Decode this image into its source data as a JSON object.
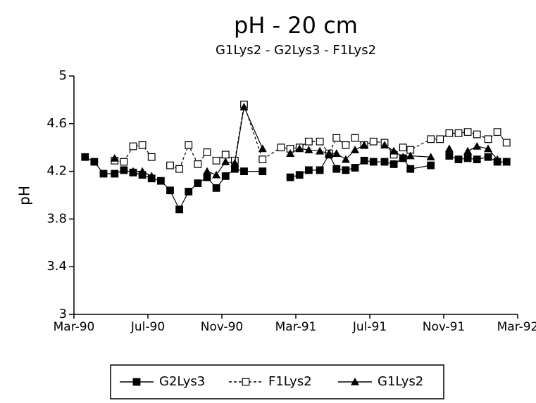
{
  "chart_data": {
    "type": "line",
    "title": "pH - 20 cm",
    "subtitle": "G1Lys2 - G2Lys3 - F1Lys2",
    "ylabel": "pH",
    "xlim": [
      0,
      24
    ],
    "xticks": [
      {
        "value": 0,
        "label": "Mar-90"
      },
      {
        "value": 4,
        "label": "Jul-90"
      },
      {
        "value": 8,
        "label": "Nov-90"
      },
      {
        "value": 12,
        "label": "Mar-91"
      },
      {
        "value": 16,
        "label": "Jul-91"
      },
      {
        "value": 20,
        "label": "Nov-91"
      },
      {
        "value": 24,
        "label": "Mar-92"
      }
    ],
    "ylim": [
      3,
      5
    ],
    "yticks": [
      3,
      3.4,
      3.8,
      4.2,
      4.6,
      5
    ],
    "x": [
      0.6,
      1.1,
      1.6,
      2.2,
      2.7,
      3.2,
      3.7,
      4.2,
      4.7,
      5.2,
      5.7,
      6.2,
      6.7,
      7.2,
      7.7,
      8.2,
      8.7,
      9.2,
      10.2,
      11.2,
      11.7,
      12.2,
      12.7,
      13.3,
      13.8,
      14.2,
      14.7,
      15.2,
      15.7,
      16.2,
      16.8,
      17.3,
      17.8,
      18.2,
      19.3,
      19.8,
      20.3,
      20.8,
      21.3,
      21.8,
      22.4,
      22.9,
      23.4
    ],
    "series": [
      {
        "name": "G2Lys3",
        "color": "#000000",
        "marker": "square",
        "dashed": false,
        "values": [
          4.32,
          4.28,
          4.18,
          4.18,
          4.21,
          4.19,
          4.17,
          4.14,
          4.12,
          4.04,
          3.88,
          4.03,
          4.1,
          4.15,
          4.06,
          4.16,
          4.22,
          4.2,
          4.2,
          null,
          4.15,
          4.17,
          4.21,
          4.21,
          4.34,
          4.22,
          4.21,
          4.23,
          4.29,
          4.28,
          4.28,
          4.26,
          4.31,
          4.22,
          4.25,
          null,
          4.33,
          4.3,
          4.31,
          4.3,
          4.32,
          4.28,
          4.28
        ]
      },
      {
        "name": "F1Lys2",
        "color": "#000000",
        "marker": "open-square",
        "dashed": true,
        "values": [
          null,
          null,
          null,
          4.29,
          4.28,
          4.41,
          4.42,
          4.32,
          null,
          4.25,
          4.22,
          4.42,
          4.26,
          4.36,
          4.29,
          4.34,
          4.29,
          4.76,
          4.3,
          4.4,
          4.39,
          4.4,
          4.45,
          4.45,
          4.35,
          4.48,
          4.42,
          4.48,
          4.42,
          4.45,
          4.44,
          4.34,
          4.4,
          4.38,
          4.47,
          4.47,
          4.52,
          4.52,
          4.53,
          4.51,
          4.47,
          4.53,
          4.44
        ]
      },
      {
        "name": "G1Lys2",
        "color": "#000000",
        "marker": "triangle",
        "dashed": false,
        "values": [
          null,
          null,
          null,
          4.31,
          null,
          4.2,
          4.2,
          4.16,
          null,
          null,
          null,
          null,
          null,
          4.2,
          4.17,
          4.28,
          4.27,
          4.74,
          4.39,
          null,
          4.35,
          4.39,
          4.38,
          4.37,
          4.35,
          4.35,
          4.3,
          4.38,
          4.42,
          null,
          4.42,
          4.37,
          4.32,
          4.33,
          4.32,
          null,
          4.39,
          null,
          4.37,
          4.41,
          4.39,
          4.3,
          null
        ]
      }
    ]
  }
}
